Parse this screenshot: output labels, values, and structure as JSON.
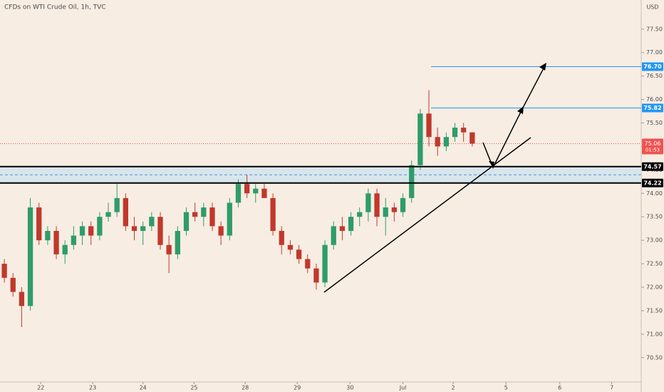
{
  "chart_data": {
    "type": "candlestick",
    "title": "CFDs on WTI Crude Oil, 1h, TVC",
    "currency": "USD",
    "up_color": "#2e9c6a",
    "down_color": "#c0392b",
    "xlim": [
      0,
      74
    ],
    "xticks": [
      {
        "value": 4.7,
        "label": "22"
      },
      {
        "value": 10.7,
        "label": "23"
      },
      {
        "value": 16.5,
        "label": "24"
      },
      {
        "value": 22.4,
        "label": "25"
      },
      {
        "value": 28.3,
        "label": "28"
      },
      {
        "value": 34.3,
        "label": "29"
      },
      {
        "value": 40.4,
        "label": "30"
      },
      {
        "value": 46.5,
        "label": "Jul"
      },
      {
        "value": 52.3,
        "label": "2"
      },
      {
        "value": 58.4,
        "label": "5"
      },
      {
        "value": 64.6,
        "label": "6"
      },
      {
        "value": 70.6,
        "label": "7"
      }
    ],
    "ylim": [
      69.98,
      78.12
    ],
    "yticks": [
      {
        "value": 70.5,
        "label": "70.50"
      },
      {
        "value": 71,
        "label": "71.00"
      },
      {
        "value": 71.5,
        "label": "71.50"
      },
      {
        "value": 72,
        "label": "72.00"
      },
      {
        "value": 72.5,
        "label": "72.50"
      },
      {
        "value": 73,
        "label": "73.00"
      },
      {
        "value": 73.5,
        "label": "73.50"
      },
      {
        "value": 74,
        "label": "74.00"
      },
      {
        "value": 74.5,
        "label": "74.50"
      },
      {
        "value": 75,
        "label": "75.00"
      },
      {
        "value": 75.5,
        "label": "75.50"
      },
      {
        "value": 76,
        "label": "76.00"
      },
      {
        "value": 76.5,
        "label": "76.50"
      },
      {
        "value": 77,
        "label": "77.00"
      },
      {
        "value": 77.5,
        "label": "77.50"
      }
    ],
    "open": [
      72.5,
      72.2,
      71.9,
      71.6,
      73.7,
      73.0,
      73.2,
      72.7,
      72.9,
      73.1,
      73.3,
      73.1,
      73.5,
      73.6,
      73.9,
      73.3,
      73.2,
      73.3,
      73.5,
      72.9,
      72.7,
      73.2,
      73.6,
      73.5,
      73.7,
      73.3,
      73.1,
      73.8,
      74.2,
      74.0,
      74.1,
      73.9,
      73.2,
      72.9,
      72.8,
      72.6,
      72.4,
      72.1,
      72.9,
      73.3,
      73.2,
      73.5,
      73.6,
      74.0,
      73.5,
      73.7,
      73.6,
      73.9,
      74.6,
      75.7,
      75.2,
      75.0,
      75.2,
      75.4,
      75.3
    ],
    "high": [
      72.6,
      72.3,
      72.0,
      73.9,
      73.8,
      73.3,
      73.3,
      73.0,
      73.3,
      73.4,
      73.4,
      73.6,
      73.8,
      74.2,
      74.0,
      73.5,
      73.4,
      73.6,
      73.6,
      73.1,
      73.3,
      73.7,
      73.8,
      73.8,
      73.8,
      73.4,
      73.9,
      74.3,
      74.4,
      74.2,
      74.2,
      74.0,
      73.3,
      73.0,
      72.9,
      72.7,
      72.5,
      73.0,
      73.4,
      73.5,
      73.6,
      73.7,
      74.1,
      74.1,
      73.9,
      73.8,
      74.0,
      74.7,
      75.8,
      76.2,
      75.4,
      75.3,
      75.5,
      75.5,
      75.3
    ],
    "low": [
      72.1,
      71.8,
      71.15,
      71.5,
      72.9,
      72.9,
      72.6,
      72.5,
      72.8,
      72.9,
      72.9,
      73.0,
      73.4,
      73.5,
      73.2,
      73.0,
      72.9,
      73.2,
      72.8,
      72.3,
      72.6,
      73.1,
      73.4,
      73.3,
      73.2,
      72.9,
      73.0,
      73.7,
      73.9,
      73.8,
      73.9,
      73.1,
      72.7,
      72.7,
      72.5,
      72.3,
      71.95,
      72.0,
      72.8,
      73.0,
      73.1,
      73.3,
      73.4,
      73.3,
      73.1,
      73.4,
      73.5,
      73.8,
      74.5,
      75.0,
      74.8,
      74.9,
      75.1,
      75.1,
      75.0
    ],
    "close": [
      72.2,
      71.9,
      71.6,
      73.7,
      73.0,
      73.2,
      72.7,
      72.9,
      73.1,
      73.3,
      73.1,
      73.5,
      73.6,
      73.9,
      73.3,
      73.2,
      73.3,
      73.5,
      72.9,
      72.7,
      73.2,
      73.6,
      73.5,
      73.7,
      73.3,
      73.1,
      73.8,
      74.2,
      74.0,
      74.1,
      73.9,
      73.2,
      72.9,
      72.8,
      72.6,
      72.4,
      72.1,
      72.9,
      73.3,
      73.2,
      73.5,
      73.6,
      74.0,
      73.5,
      73.7,
      73.6,
      73.9,
      74.6,
      75.7,
      75.2,
      75.0,
      75.2,
      75.4,
      75.3,
      75.06
    ],
    "levels": [
      {
        "value": 76.7,
        "label": "76.70",
        "color": "#2196f3"
      },
      {
        "value": 75.82,
        "label": "75.82",
        "color": "#2196f3"
      },
      {
        "value": 74.57,
        "label": "74.57",
        "color": "#000000"
      },
      {
        "value": 74.22,
        "label": "74.22",
        "color": "#000000"
      }
    ],
    "current_price": {
      "value": 75.06,
      "label": "75.06",
      "timer": "01:53",
      "color": "#ef5350"
    }
  }
}
